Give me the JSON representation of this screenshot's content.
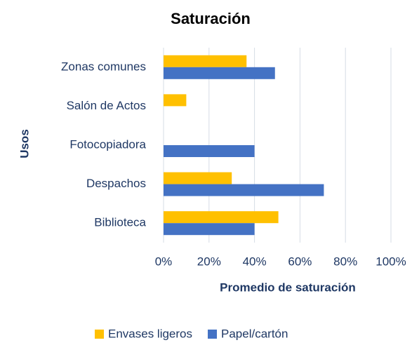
{
  "chart_data": {
    "type": "bar",
    "orientation": "horizontal",
    "title": "Saturación",
    "xlabel": "Promedio de saturación",
    "ylabel": "Usos",
    "categories": [
      "Zonas comunes",
      "Salón de Actos",
      "Fotocopiadora",
      "Despachos",
      "Biblioteca"
    ],
    "series": [
      {
        "name": "Envases ligeros",
        "color": "#ffc000",
        "values": [
          36.5,
          10,
          0,
          30,
          50.5
        ]
      },
      {
        "name": "Papel/cartón",
        "color": "#4472c4",
        "values": [
          49,
          0,
          40,
          70.5,
          40
        ]
      }
    ],
    "xlim": [
      0,
      100
    ],
    "xticks": [
      {
        "value": 0,
        "label": "0%"
      },
      {
        "value": 20,
        "label": "20%"
      },
      {
        "value": 40,
        "label": "40%"
      },
      {
        "value": 60,
        "label": "60%"
      },
      {
        "value": 80,
        "label": "80%"
      },
      {
        "value": 100,
        "label": "100%"
      }
    ],
    "grid": true,
    "legend": "bottom"
  }
}
